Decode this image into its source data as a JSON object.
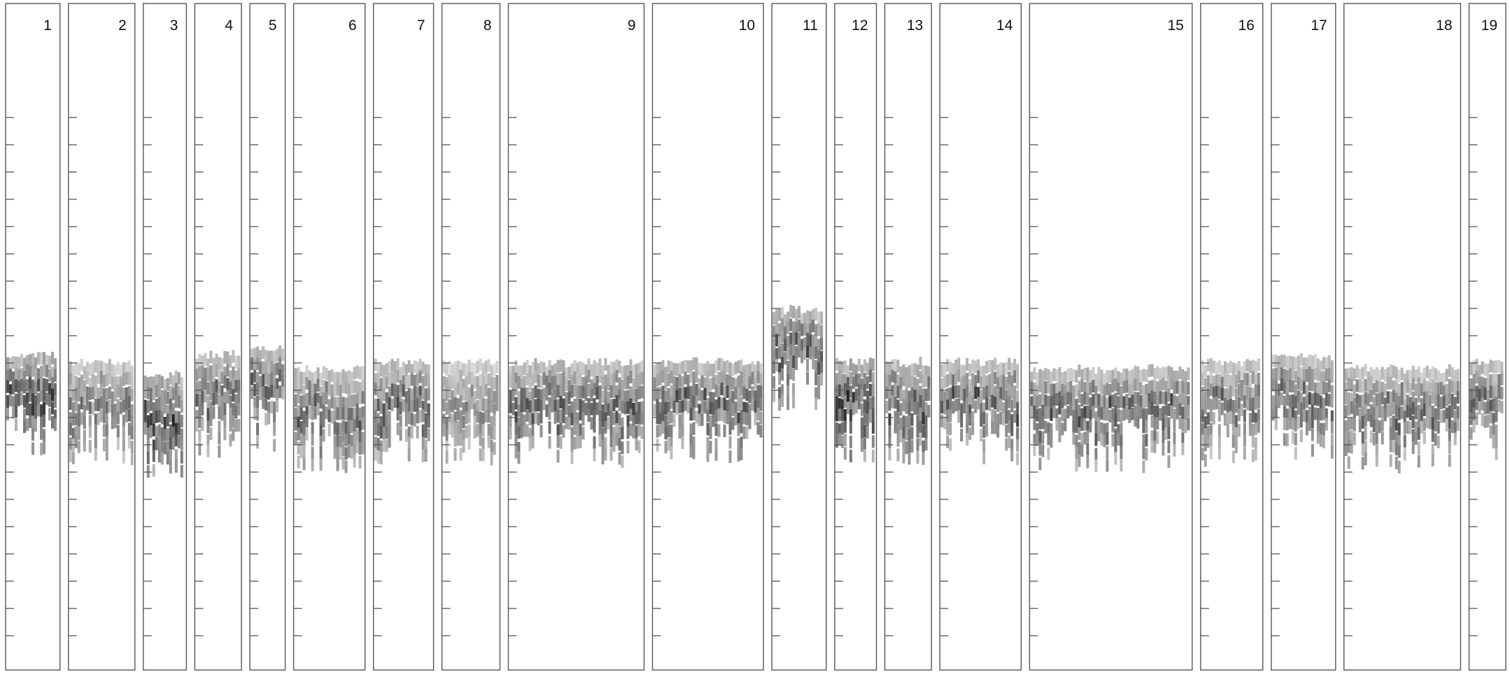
{
  "chart_data": {
    "type": "heatmap",
    "title": "",
    "xlabel": "",
    "ylabel": "",
    "panel_labels": [
      "1",
      "2",
      "3",
      "4",
      "5",
      "6",
      "7",
      "8",
      "9",
      "10",
      "11",
      "12",
      "13",
      "14",
      "15",
      "16",
      "17",
      "18",
      "19"
    ],
    "panel_relative_widths": [
      0.077,
      0.094,
      0.061,
      0.066,
      0.05,
      0.101,
      0.085,
      0.082,
      0.192,
      0.157,
      0.077,
      0.059,
      0.066,
      0.115,
      0.23,
      0.088,
      0.091,
      0.165,
      0.052
    ],
    "y_ticks_per_panel": 20,
    "baseline_fraction": 0.57,
    "segments": [
      {
        "panel": "1",
        "level": 0.57,
        "intensity": 0.8
      },
      {
        "panel": "2",
        "level": 0.58,
        "intensity": 0.65,
        "note": ""
      },
      {
        "panel": "3",
        "level": 0.6,
        "intensity": 0.85
      },
      {
        "panel": "4",
        "level": 0.57,
        "intensity": 0.7
      },
      {
        "panel": "5",
        "level": 0.56,
        "intensity": 0.72
      },
      {
        "panel": "6",
        "level": 0.59,
        "intensity": 0.7
      },
      {
        "panel": "7",
        "level": 0.58,
        "intensity": 0.72
      },
      {
        "panel": "8",
        "level": 0.58,
        "intensity": 0.55
      },
      {
        "panel": "9",
        "level": 0.58,
        "intensity": 0.72
      },
      {
        "panel": "10",
        "level": 0.58,
        "intensity": 0.72
      },
      {
        "panel": "11",
        "level": 0.5,
        "intensity": 0.75
      },
      {
        "panel": "12",
        "level": 0.58,
        "intensity": 0.85
      },
      {
        "panel": "13",
        "level": 0.58,
        "intensity": 0.75
      },
      {
        "panel": "14",
        "level": 0.58,
        "intensity": 0.72
      },
      {
        "panel": "15",
        "level": 0.59,
        "intensity": 0.72
      },
      {
        "panel": "16",
        "level": 0.58,
        "intensity": 0.65
      },
      {
        "panel": "17",
        "level": 0.57,
        "intensity": 0.7
      },
      {
        "panel": "18",
        "level": 0.59,
        "intensity": 0.68
      },
      {
        "panel": "19",
        "level": 0.58,
        "intensity": 0.7
      }
    ],
    "colors": {
      "frame": "#555555",
      "tick": "#555555",
      "dark": "#000000",
      "light": "#d8d8d8",
      "background": "#ffffff"
    },
    "grid": false,
    "legend": "none"
  }
}
